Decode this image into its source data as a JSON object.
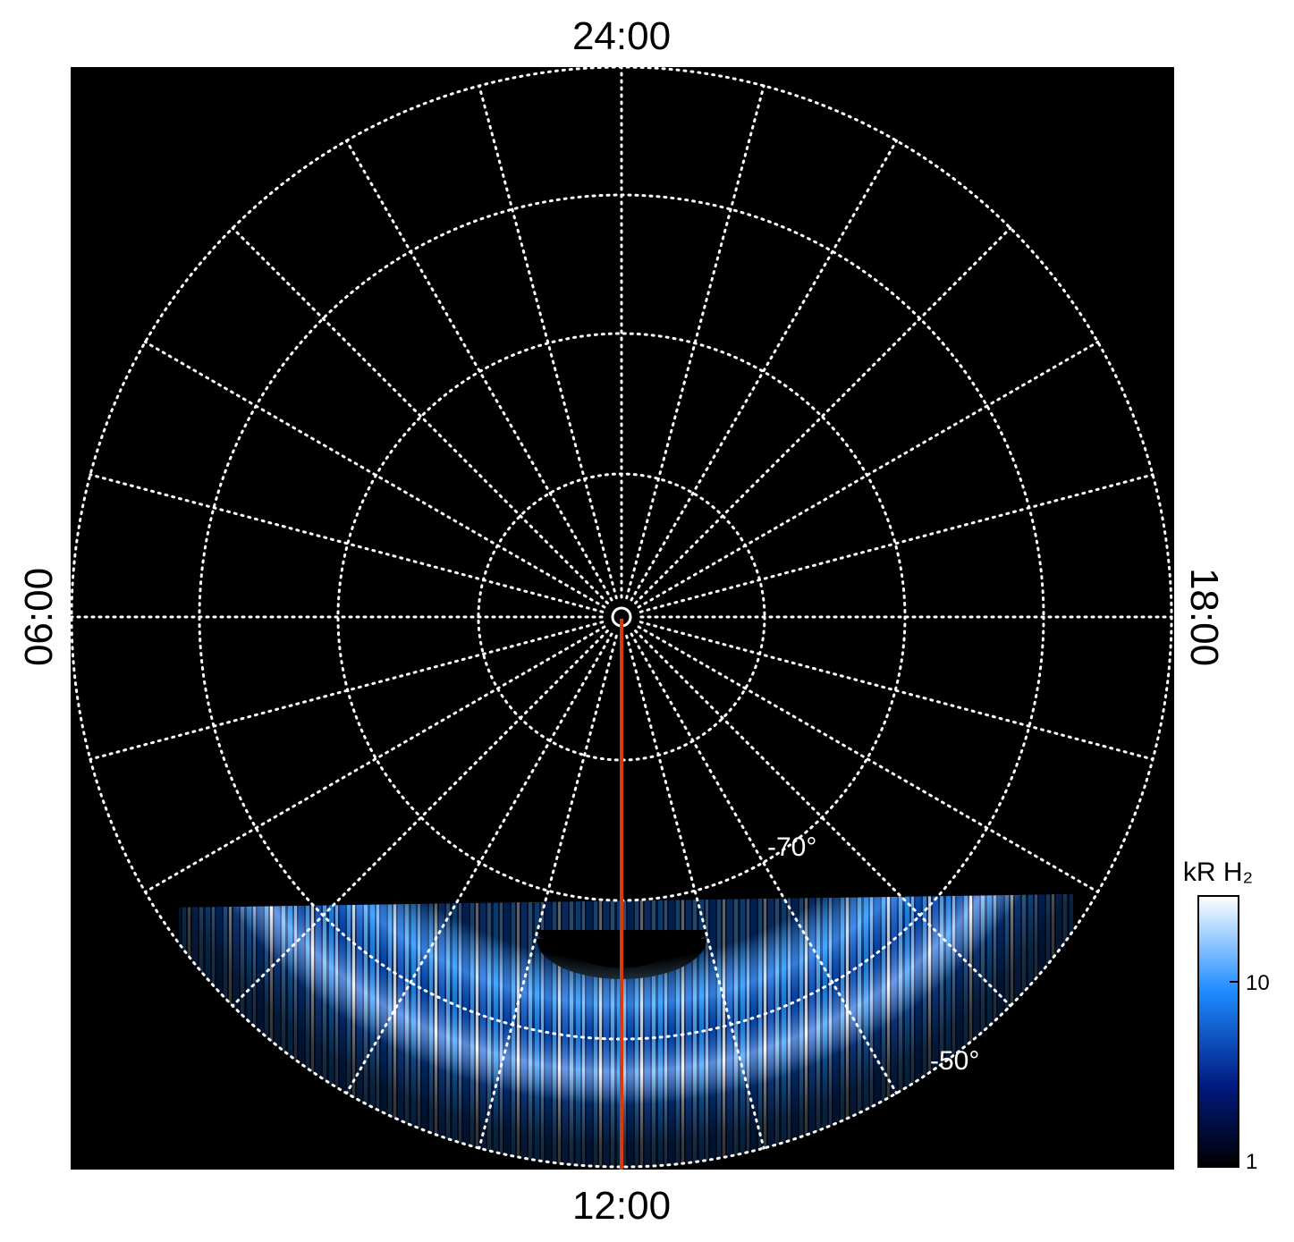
{
  "labels": {
    "top": "24:00",
    "bottom": "12:00",
    "left": "06:00",
    "right": "18:00"
  },
  "latitude_labels": [
    "-70°",
    "-50°"
  ],
  "colorbar": {
    "title": "kR H₂",
    "ticks": [
      "10",
      "1"
    ]
  }
}
